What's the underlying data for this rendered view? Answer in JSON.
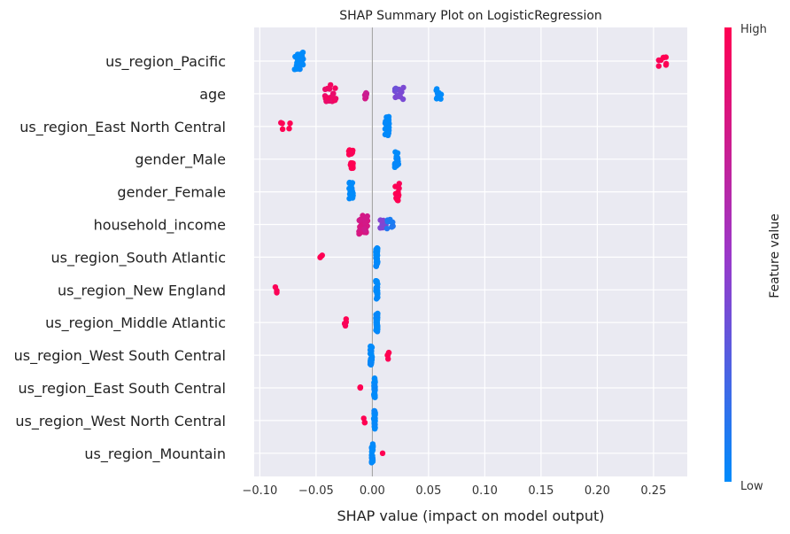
{
  "chart_data": {
    "type": "scatter",
    "title": "SHAP Summary Plot on LogisticRegression",
    "xlabel": "SHAP value (impact on model output)",
    "xlim": [
      -0.105,
      0.28
    ],
    "xticks": [
      -0.1,
      -0.05,
      0.0,
      0.05,
      0.1,
      0.15,
      0.2,
      0.25
    ],
    "xtick_labels": [
      "−0.10",
      "−0.05",
      "0.00",
      "0.05",
      "0.10",
      "0.15",
      "0.20",
      "0.25"
    ],
    "grid": true,
    "colorbar": {
      "label": "Feature value",
      "high_label": "High",
      "low_label": "Low",
      "low_color": "#008bfb",
      "mid_color": "#9b38c9",
      "high_color": "#ff0052"
    },
    "features": [
      {
        "name": "us_region_Pacific",
        "groups": [
          {
            "x": -0.065,
            "spread": 0.004,
            "color": 0.0,
            "count": 26
          },
          {
            "x": 0.258,
            "spread": 0.004,
            "color": 1.0,
            "count": 8
          }
        ]
      },
      {
        "name": "age",
        "groups": [
          {
            "x": -0.037,
            "spread": 0.005,
            "color": 0.92,
            "count": 18
          },
          {
            "x": -0.006,
            "spread": 0.001,
            "color": 0.75,
            "count": 8
          },
          {
            "x": 0.024,
            "spread": 0.004,
            "color": 0.38,
            "count": 12
          },
          {
            "x": 0.06,
            "spread": 0.004,
            "color": 0.0,
            "count": 10
          }
        ]
      },
      {
        "name": "us_region_East North Central",
        "groups": [
          {
            "x": -0.079,
            "spread": 0.006,
            "color": 1.0,
            "count": 5
          },
          {
            "x": 0.013,
            "spread": 0.002,
            "color": 0.0,
            "count": 26
          }
        ]
      },
      {
        "name": "gender_Male",
        "groups": [
          {
            "x": -0.019,
            "spread": 0.002,
            "color": 1.0,
            "count": 24
          },
          {
            "x": 0.022,
            "spread": 0.002,
            "color": 0.0,
            "count": 16
          }
        ]
      },
      {
        "name": "gender_Female",
        "groups": [
          {
            "x": -0.019,
            "spread": 0.002,
            "color": 0.0,
            "count": 22
          },
          {
            "x": 0.022,
            "spread": 0.002,
            "color": 1.0,
            "count": 18
          }
        ]
      },
      {
        "name": "household_income",
        "groups": [
          {
            "x": -0.008,
            "spread": 0.004,
            "color": 0.78,
            "count": 30
          },
          {
            "x": 0.009,
            "spread": 0.003,
            "color": 0.42,
            "count": 8
          },
          {
            "x": 0.016,
            "spread": 0.003,
            "color": 0.1,
            "count": 8
          }
        ]
      },
      {
        "name": "us_region_South Atlantic",
        "groups": [
          {
            "x": -0.046,
            "spread": 0.002,
            "color": 1.0,
            "count": 3
          },
          {
            "x": 0.004,
            "spread": 0.0008,
            "color": 0.0,
            "count": 30
          }
        ]
      },
      {
        "name": "us_region_New England",
        "groups": [
          {
            "x": -0.085,
            "spread": 0.002,
            "color": 1.0,
            "count": 3
          },
          {
            "x": 0.004,
            "spread": 0.0008,
            "color": 0.0,
            "count": 30
          }
        ]
      },
      {
        "name": "us_region_Middle Atlantic",
        "groups": [
          {
            "x": -0.024,
            "spread": 0.001,
            "color": 1.0,
            "count": 5
          },
          {
            "x": 0.004,
            "spread": 0.0008,
            "color": 0.0,
            "count": 30
          }
        ]
      },
      {
        "name": "us_region_West South Central",
        "groups": [
          {
            "x": -0.001,
            "spread": 0.0008,
            "color": 0.0,
            "count": 28
          },
          {
            "x": 0.014,
            "spread": 0.001,
            "color": 1.0,
            "count": 5
          }
        ]
      },
      {
        "name": "us_region_East South Central",
        "groups": [
          {
            "x": -0.011,
            "spread": 0.0006,
            "color": 1.0,
            "count": 3
          },
          {
            "x": 0.002,
            "spread": 0.0006,
            "color": 0.0,
            "count": 28
          }
        ]
      },
      {
        "name": "us_region_West North Central",
        "groups": [
          {
            "x": -0.007,
            "spread": 0.0006,
            "color": 1.0,
            "count": 3
          },
          {
            "x": 0.002,
            "spread": 0.0006,
            "color": 0.0,
            "count": 28
          }
        ]
      },
      {
        "name": "us_region_Mountain",
        "groups": [
          {
            "x": 0.0,
            "spread": 0.0006,
            "color": 0.0,
            "count": 28
          },
          {
            "x": 0.009,
            "spread": 0.0005,
            "color": 1.0,
            "count": 1
          }
        ]
      }
    ]
  }
}
